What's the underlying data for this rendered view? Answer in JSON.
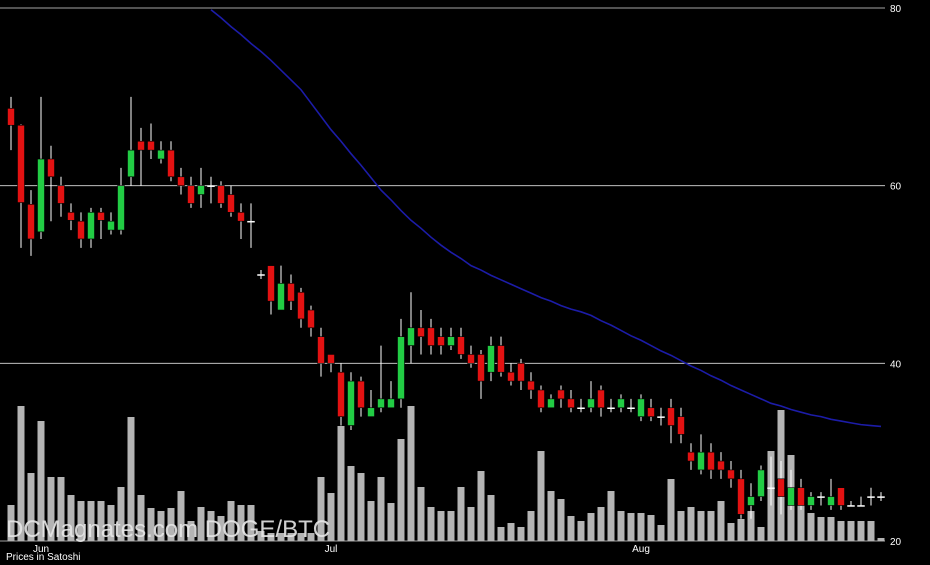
{
  "chart_data": {
    "type": "candlestick",
    "title": "DCMagnates.com DOGE/BTC",
    "note": "Prices in Satoshi",
    "categories": [
      null,
      null,
      null,
      "Jun",
      null,
      null,
      null,
      null,
      null,
      null,
      null,
      null,
      null,
      null,
      null,
      null,
      null,
      null,
      null,
      null,
      null,
      null,
      null,
      null,
      null,
      null,
      null,
      null,
      null,
      null,
      null,
      null,
      "Jul",
      null,
      null,
      null,
      null,
      null,
      null,
      null,
      null,
      null,
      null,
      null,
      null,
      null,
      null,
      null,
      null,
      null,
      null,
      null,
      null,
      null,
      null,
      null,
      null,
      null,
      null,
      null,
      null,
      null,
      null,
      "Aug",
      null,
      null,
      null,
      null,
      null,
      null,
      null,
      null,
      null,
      null,
      null,
      null,
      null,
      null,
      null,
      null,
      null,
      null,
      null,
      null,
      null,
      null,
      null,
      null
    ],
    "open": [
      68.7,
      66.8,
      57.9,
      54.8,
      63,
      60,
      57,
      56,
      54,
      57,
      55,
      55,
      61,
      65,
      65,
      63,
      64,
      61,
      60,
      59,
      60,
      60,
      59,
      57,
      56,
      50,
      51,
      46,
      49,
      48,
      46,
      43,
      41,
      39,
      33,
      38,
      34,
      35,
      35,
      36,
      42,
      44,
      44,
      43,
      42,
      43,
      41,
      41,
      39,
      42,
      39,
      40,
      38,
      37,
      35,
      37,
      36,
      35,
      35,
      37,
      35,
      35,
      35,
      34,
      35,
      34,
      35,
      34,
      30,
      28,
      30,
      29,
      28,
      27,
      24,
      25,
      26,
      27,
      24,
      26,
      24,
      25,
      24,
      26,
      24,
      24,
      25,
      25
    ],
    "high": [
      70,
      66.9,
      59.5,
      70,
      64.5,
      61,
      58,
      57,
      57.5,
      57.5,
      57,
      62,
      70,
      66.5,
      67,
      65,
      65,
      62,
      61,
      62,
      61,
      60.5,
      60,
      58,
      58,
      50.5,
      51,
      51,
      50,
      48.5,
      46.5,
      44,
      41,
      40,
      39,
      38.5,
      37,
      42,
      38,
      45,
      48,
      46,
      45,
      44,
      44,
      44,
      42,
      41.5,
      43,
      43,
      40,
      40.5,
      39,
      37.5,
      36.5,
      37.5,
      37,
      36,
      38,
      37.5,
      36,
      36.5,
      36,
      36.5,
      36,
      35,
      36,
      35,
      31,
      32,
      31,
      30,
      29,
      28,
      26.5,
      28.5,
      29.5,
      29,
      28,
      27,
      25.5,
      25.5,
      27,
      26,
      24.5,
      25,
      26,
      25.5
    ],
    "low": [
      64,
      53,
      52.1,
      54,
      56,
      56.5,
      55,
      53,
      53,
      54,
      54.5,
      54.5,
      60,
      60,
      63,
      62.5,
      60.5,
      59,
      57.5,
      57.5,
      58,
      57.5,
      56.5,
      54,
      53,
      49.5,
      45.5,
      46,
      46,
      44,
      43,
      38.5,
      39,
      33,
      32.5,
      34,
      34,
      34.5,
      35,
      35,
      40,
      41,
      41,
      41,
      41.5,
      40.5,
      39.5,
      36,
      38,
      38.5,
      37.5,
      37,
      36,
      34.5,
      35,
      35,
      34.5,
      34.5,
      34.5,
      34,
      34.5,
      34.5,
      34.5,
      33.5,
      33.5,
      33,
      31,
      31,
      28,
      27.5,
      27,
      27,
      26,
      22.5,
      22.5,
      24.5,
      24,
      23,
      23.5,
      23.5,
      23.5,
      24,
      23.5,
      23.5,
      24,
      24,
      24,
      24.5
    ],
    "close": [
      66.8,
      58.1,
      54,
      63,
      61,
      58,
      56.1,
      54,
      57,
      56.1,
      56,
      60,
      64,
      64,
      64,
      64,
      61,
      60,
      58,
      60,
      60,
      58,
      57,
      56,
      56,
      50,
      47,
      49,
      47,
      45,
      44,
      40,
      40,
      34,
      38,
      35,
      35,
      36,
      36,
      43,
      44,
      43,
      42,
      42,
      43,
      41,
      40,
      38,
      42,
      39,
      38,
      38,
      37,
      35,
      36,
      36,
      35,
      35,
      36,
      35,
      35,
      36,
      35,
      36,
      34,
      34,
      33,
      32,
      29,
      30,
      28,
      28,
      27,
      23,
      25,
      28,
      26,
      25,
      26,
      24,
      25,
      25,
      25,
      24,
      24,
      24,
      25,
      25
    ],
    "volume": [
      36,
      135,
      68,
      120,
      64,
      64,
      46,
      40,
      40,
      40,
      36,
      54,
      124,
      46,
      33,
      30,
      33,
      50,
      20,
      34,
      30,
      25,
      40,
      36,
      36,
      10,
      8,
      8,
      8,
      8,
      8,
      64,
      48,
      115,
      75,
      68,
      40,
      64,
      38,
      102,
      135,
      54,
      34,
      30,
      30,
      54,
      34,
      70,
      46,
      14,
      18,
      14,
      30,
      90,
      50,
      42,
      25,
      20,
      28,
      34,
      50,
      30,
      28,
      28,
      26,
      16,
      62,
      30,
      34,
      30,
      30,
      40,
      18,
      22,
      30,
      14,
      90,
      131,
      86,
      50,
      28,
      24,
      24,
      20,
      20,
      20,
      20,
      3
    ],
    "ma": {
      "color": "#1c1ca8",
      "values": [
        null,
        null,
        null,
        null,
        null,
        null,
        null,
        null,
        null,
        null,
        null,
        null,
        null,
        null,
        null,
        null,
        null,
        null,
        null,
        null,
        79.8,
        78.9,
        77.9,
        77.0,
        76.0,
        75.1,
        74.1,
        73.0,
        71.9,
        70.8,
        69.3,
        67.8,
        66.3,
        65.0,
        63.6,
        62.3,
        60.9,
        59.5,
        58.4,
        57.2,
        56.1,
        55.2,
        54.2,
        53.3,
        52.5,
        51.8,
        51.0,
        50.5,
        49.9,
        49.4,
        48.9,
        48.4,
        47.9,
        47.4,
        47.0,
        46.5,
        46.1,
        45.8,
        45.4,
        44.8,
        44.3,
        43.7,
        43.1,
        42.6,
        42.0,
        41.4,
        40.9,
        40.3,
        39.7,
        39.2,
        38.6,
        38.1,
        37.5,
        37.0,
        36.5,
        36.0,
        35.5,
        35.2,
        34.8,
        34.5,
        34.2,
        34.0,
        33.7,
        33.5,
        33.3,
        33.1,
        33.0,
        32.9
      ]
    },
    "up_color": "#22cc44",
    "down_color": "#e31212",
    "volume_color": "#b4b4b4",
    "ylim": [
      20,
      80
    ],
    "yticks": [
      20,
      40,
      60,
      80
    ],
    "grid": true
  }
}
